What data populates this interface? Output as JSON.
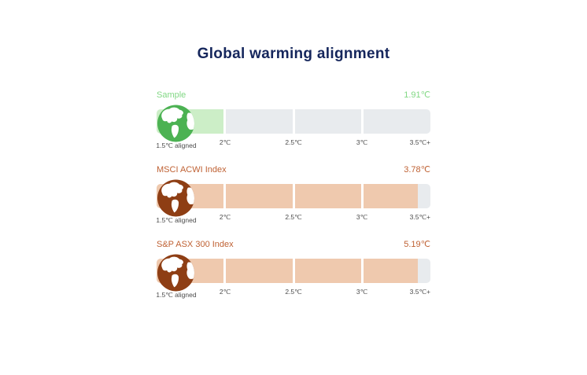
{
  "title": {
    "text": "Global warming alignment",
    "color": "#15265c"
  },
  "chart_data": {
    "type": "bar",
    "title": "Global warming alignment",
    "unit": "℃",
    "x_axis": {
      "min": 1.5,
      "max": 3.5,
      "start_label": "1.5℃ aligned",
      "ticks": [
        "2℃",
        "2.5℃",
        "3℃",
        "3.5℃+"
      ]
    },
    "track_color": "#e8ebee",
    "tick_text_color": "#4b4b4b",
    "rows": [
      {
        "label": "Sample",
        "value": 1.91,
        "value_label": "1.91℃",
        "accent_color": "#82d885",
        "globe_color": "#4cb253",
        "fill_color": "#cceec7",
        "fill_segments": [
          100,
          0,
          0,
          0
        ]
      },
      {
        "label": "MSCI ACWI Index",
        "value": 3.78,
        "value_label": "3.78℃",
        "accent_color": "#bf6133",
        "globe_color": "#8e3e14",
        "fill_color": "#efc9ae",
        "fill_segments": [
          100,
          100,
          100,
          81
        ]
      },
      {
        "label": "S&P ASX 300 Index",
        "value": 5.19,
        "value_label": "5.19℃",
        "accent_color": "#bf6133",
        "globe_color": "#8e3e14",
        "fill_color": "#efc9ae",
        "fill_segments": [
          100,
          100,
          100,
          81
        ]
      }
    ]
  }
}
